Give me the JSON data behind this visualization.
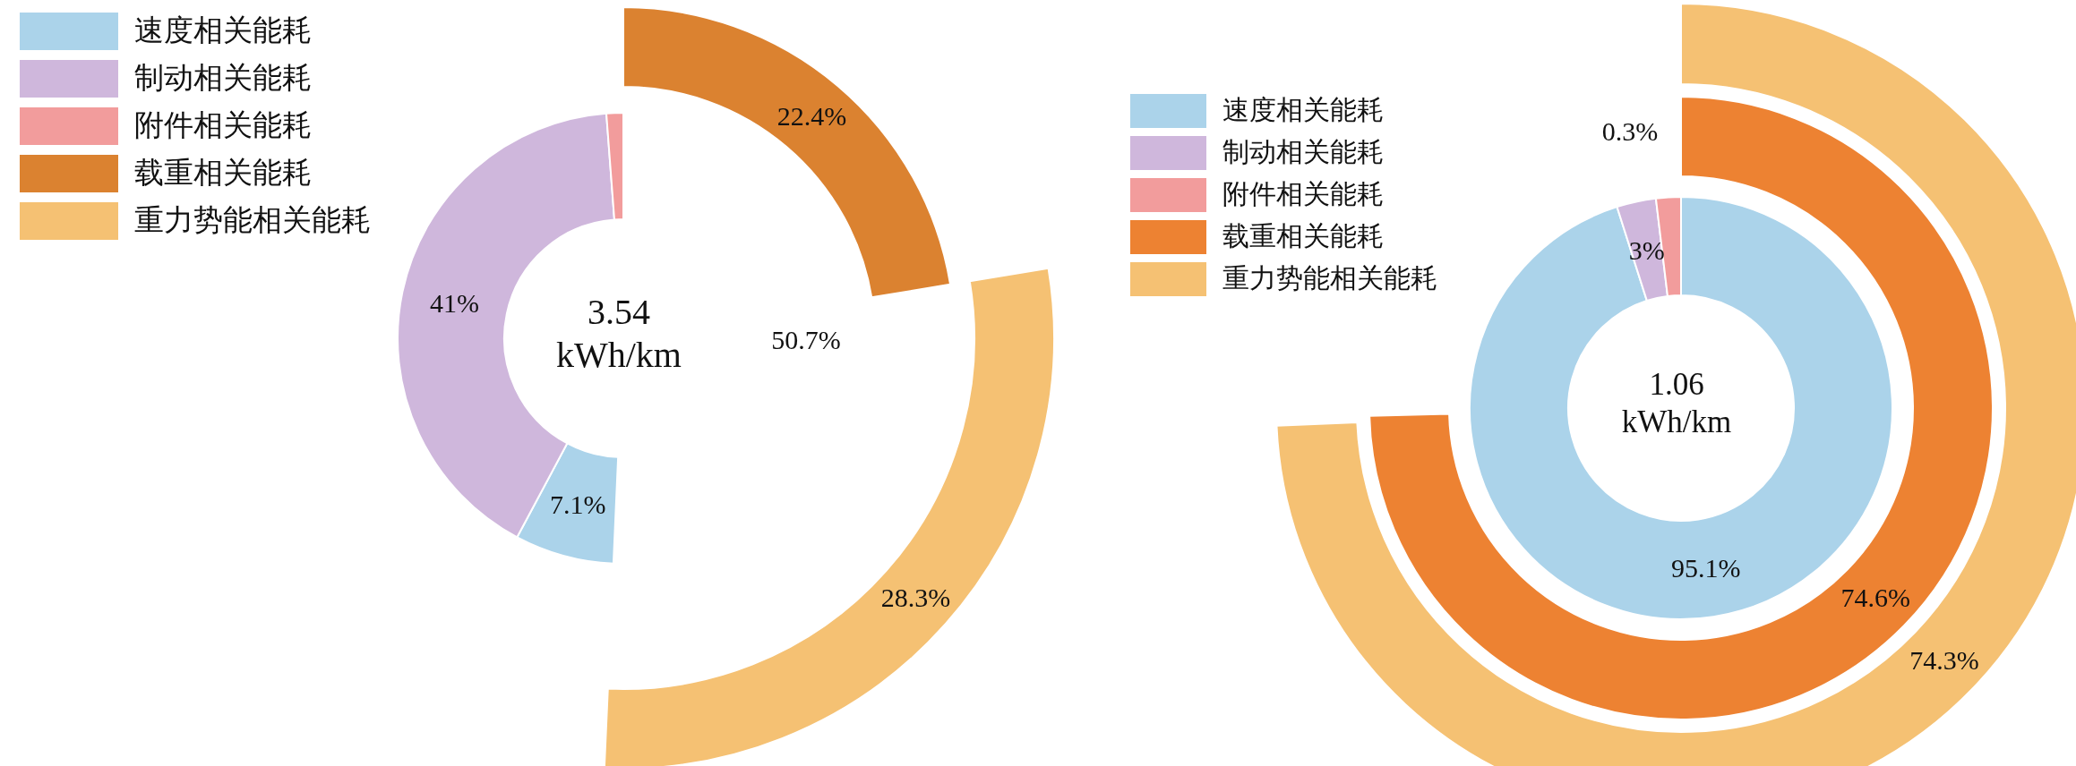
{
  "chart_data": [
    {
      "type": "donut",
      "categories": [
        "速度相关能耗",
        "制动相关能耗",
        "附件相关能耗",
        "载重相关能耗",
        "重力势能相关能耗"
      ],
      "colors": [
        "#abd3ea",
        "#cfb7dc",
        "#f29c9c",
        "#db8230",
        "#f5c173"
      ],
      "series": [
        {
          "values": [
            null,
            null,
            null,
            null,
            28.3
          ],
          "value_labels": [
            null,
            null,
            null,
            null,
            "28.3%"
          ]
        },
        {
          "values": [
            null,
            null,
            null,
            22.4,
            null
          ],
          "value_labels": [
            null,
            null,
            null,
            "22.4%",
            null
          ]
        },
        {
          "values": [
            7.1,
            41,
            1.2,
            null,
            null
          ],
          "value_labels": [
            "7.1%",
            "41%",
            null,
            null,
            null
          ]
        }
      ],
      "annotations": [
        "3.54 kWh/km",
        "50.7%"
      ],
      "legend": "top left"
    },
    {
      "type": "donut",
      "categories": [
        "速度相关能耗",
        "制动相关能耗",
        "附件相关能耗",
        "载重相关能耗",
        "重力势能相关能耗"
      ],
      "colors": [
        "#abd3ea",
        "#cfb7dc",
        "#f29c9c",
        "#ed8232",
        "#f5c173"
      ],
      "series": [
        {
          "values": [
            95.1,
            3,
            1.9,
            null,
            null
          ],
          "value_labels": [
            "95.1%",
            "3%",
            null,
            null,
            null
          ]
        },
        {
          "values": [
            null,
            null,
            null,
            74.6,
            null
          ],
          "value_labels": [
            null,
            null,
            null,
            "74.6%",
            null
          ]
        },
        {
          "values": [
            null,
            null,
            null,
            null,
            74.3
          ],
          "value_labels": [
            null,
            null,
            null,
            null,
            "74.3%"
          ]
        }
      ],
      "annotations": [
        "1.06 kWh/km",
        "0.3%"
      ],
      "legend": "top left"
    }
  ]
}
